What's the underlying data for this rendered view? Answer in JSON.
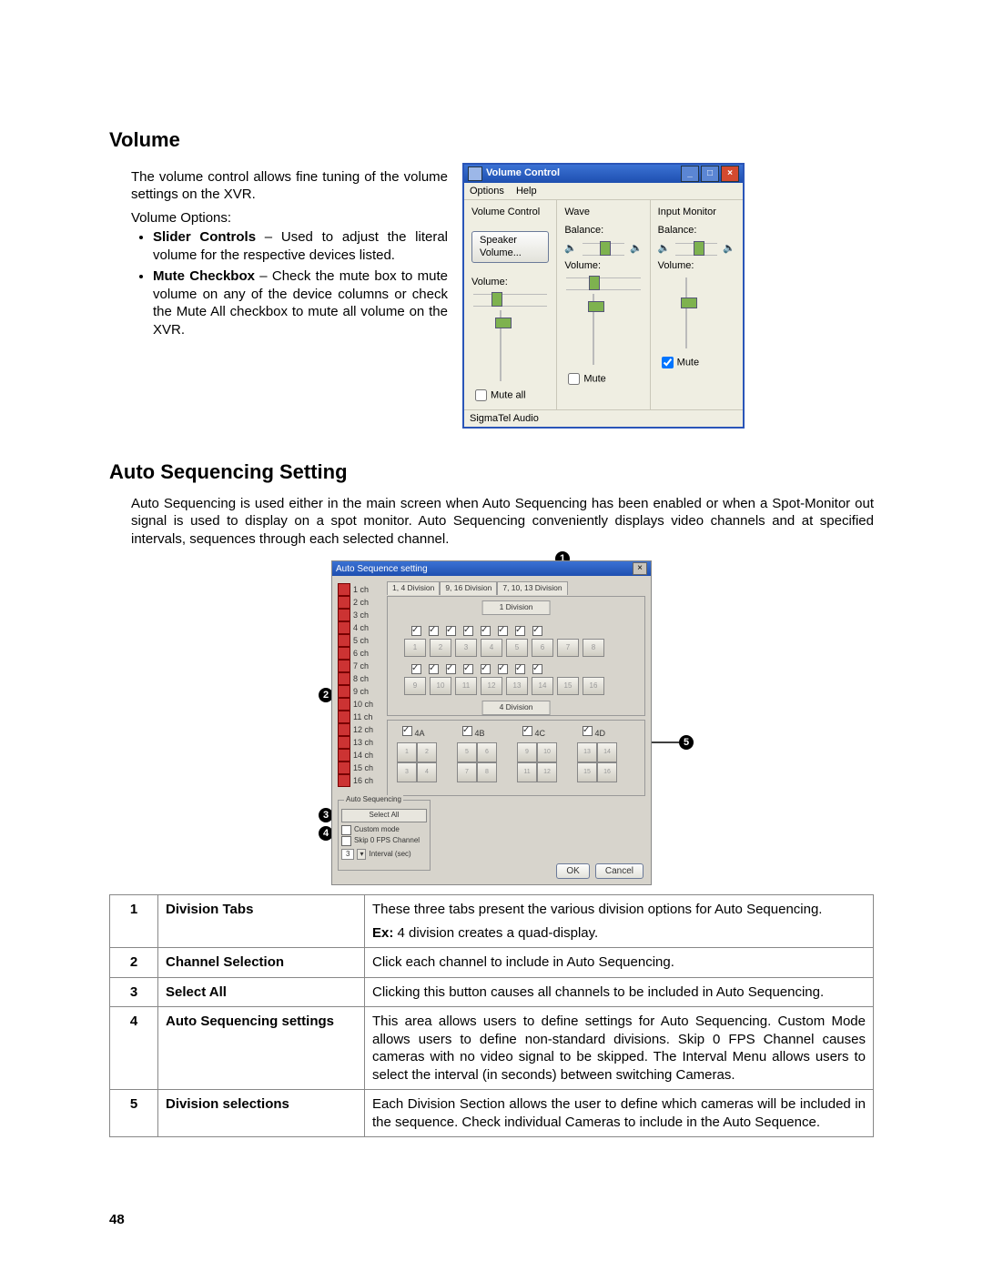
{
  "page_number": "48",
  "volume": {
    "heading": "Volume",
    "intro": "The volume control allows fine tuning of the volume settings on the XVR.",
    "options_label": "Volume Options:",
    "bullet1_term": "Slider Controls",
    "bullet1_rest": " – Used to adjust the literal volume for the respective devices listed.",
    "bullet2_term": "Mute Checkbox",
    "bullet2_rest": " – Check the mute box to mute volume on any of the device columns or check the Mute All checkbox to mute all volume on the XVR.",
    "window": {
      "title": "Volume Control",
      "menu_options": "Options",
      "menu_help": "Help",
      "col0": "Volume Control",
      "speaker_btn": "Speaker Volume...",
      "vol_label": "Volume:",
      "mute_all": "Mute all",
      "col1": "Wave",
      "balance": "Balance:",
      "mute": "Mute",
      "col2": "Input Monitor",
      "status": "SigmaTel Audio",
      "colors": {
        "title_start": "#3b72d4",
        "title_end": "#1e4fb0",
        "bg": "#efeee2",
        "thumb": "#7eb24f",
        "close": "#d34a2f"
      }
    }
  },
  "autoseq": {
    "heading": "Auto Sequencing Setting",
    "intro": "Auto Sequencing is used either in the main screen when Auto Sequencing has been enabled or when a Spot-Monitor out signal is used to display on a spot monitor. Auto Sequencing conveniently displays video channels and at specified intervals, sequences through each selected channel.",
    "window": {
      "title": "Auto Sequence setting",
      "tab1": "1, 4 Division",
      "tab2": "9, 16 Division",
      "tab3": "7, 10, 13 Division",
      "div1_label": "1 Division",
      "div4_label": "4 Division",
      "g4a": "4A",
      "g4b": "4B",
      "g4c": "4C",
      "g4d": "4D",
      "box_title": "Auto Sequencing",
      "select_all": "Select All",
      "custom": "Custom mode",
      "skip": "Skip 0 FPS Channel",
      "interval_n": "3",
      "interval_lbl": "Interval (sec)",
      "ok": "OK",
      "cancel": "Cancel",
      "channels": [
        "1 ch",
        "2 ch",
        "3 ch",
        "4 ch",
        "5 ch",
        "6 ch",
        "7 ch",
        "8 ch",
        "9 ch",
        "10 ch",
        "11 ch",
        "12 ch",
        "13 ch",
        "14 ch",
        "15 ch",
        "16 ch"
      ],
      "colors": {
        "bg": "#d7d4cc",
        "red": "#c33"
      }
    },
    "callouts": {
      "1": "1",
      "2": "2",
      "3": "3",
      "4": "4",
      "5": "5"
    },
    "table": [
      {
        "n": "1",
        "term": "Division Tabs",
        "desc": "These three tabs present the various division options for Auto Sequencing.",
        "ex_bold": "Ex:",
        "ex_rest": " 4 division creates a quad-display."
      },
      {
        "n": "2",
        "term": "Channel Selection",
        "desc": "Click each channel to include in Auto Sequencing."
      },
      {
        "n": "3",
        "term": "Select All",
        "desc": "Clicking this button causes all channels to be included in Auto Sequencing."
      },
      {
        "n": "4",
        "term": "Auto Sequencing settings",
        "desc": "This area allows users to define settings for Auto Sequencing. Custom Mode allows users to define non-standard divisions. Skip 0 FPS Channel causes cameras with no video signal to be skipped. The Interval Menu allows users to select the interval (in seconds) between switching Cameras."
      },
      {
        "n": "5",
        "term": "Division selections",
        "desc": "Each Division Section allows the user to define which cameras will be included in the sequence. Check individual Cameras to include in the Auto Sequence."
      }
    ]
  }
}
